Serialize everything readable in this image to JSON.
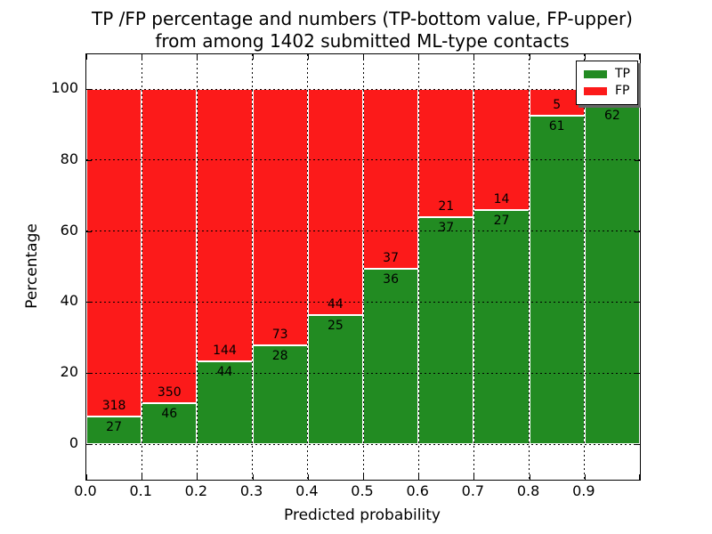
{
  "title": {
    "line1": "TP /FP percentage and numbers (TP-bottom value, FP-upper)",
    "line2": "from among 1402 submitted ML-type contacts"
  },
  "y_axis": {
    "label": "Percentage",
    "ticks": [
      "0",
      "20",
      "40",
      "60",
      "80",
      "100"
    ]
  },
  "x_axis": {
    "label": "Predicted probability",
    "ticks": [
      "0.0",
      "0.1",
      "0.2",
      "0.3",
      "0.4",
      "0.5",
      "0.6",
      "0.7",
      "0.8",
      "0.9"
    ]
  },
  "legend": {
    "items": [
      {
        "label": "TP",
        "color": "#228b22"
      },
      {
        "label": "FP",
        "color": "#fc1a1a"
      }
    ]
  },
  "colors": {
    "tp": "#228b22",
    "fp": "#fc1a1a",
    "grid": "#000000",
    "background": "#ffffff"
  },
  "chart_data": {
    "type": "bar",
    "stacked": true,
    "normalized": "percent",
    "title": "TP /FP percentage and numbers (TP-bottom value, FP-upper) from among 1402 submitted ML-type contacts",
    "xlabel": "Predicted probability",
    "ylabel": "Percentage",
    "total_contacts": 1402,
    "categories": [
      "0.0-0.1",
      "0.1-0.2",
      "0.2-0.3",
      "0.3-0.4",
      "0.4-0.5",
      "0.5-0.6",
      "0.6-0.7",
      "0.7-0.8",
      "0.8-0.9",
      "0.9-1.0"
    ],
    "series": [
      {
        "name": "TP",
        "color": "#228b22",
        "values": [
          27,
          46,
          44,
          28,
          25,
          36,
          37,
          27,
          61,
          62
        ],
        "labels": [
          "27",
          "46",
          "44",
          "28",
          "25",
          "36",
          "37",
          "27",
          "61",
          "62"
        ]
      },
      {
        "name": "FP",
        "color": "#fc1a1a",
        "values": [
          318,
          350,
          144,
          73,
          44,
          37,
          21,
          14,
          5,
          3
        ],
        "labels": [
          "318",
          "350",
          "144",
          "73",
          "44",
          "37",
          "21",
          "14",
          "5",
          ""
        ]
      }
    ],
    "bar_width": 0.1,
    "xlim": [
      0.0,
      1.0
    ],
    "ylim": [
      -10,
      110
    ],
    "bars_span_percent": [
      0,
      100
    ],
    "grid": "dotted",
    "legend_position": "upper right"
  }
}
